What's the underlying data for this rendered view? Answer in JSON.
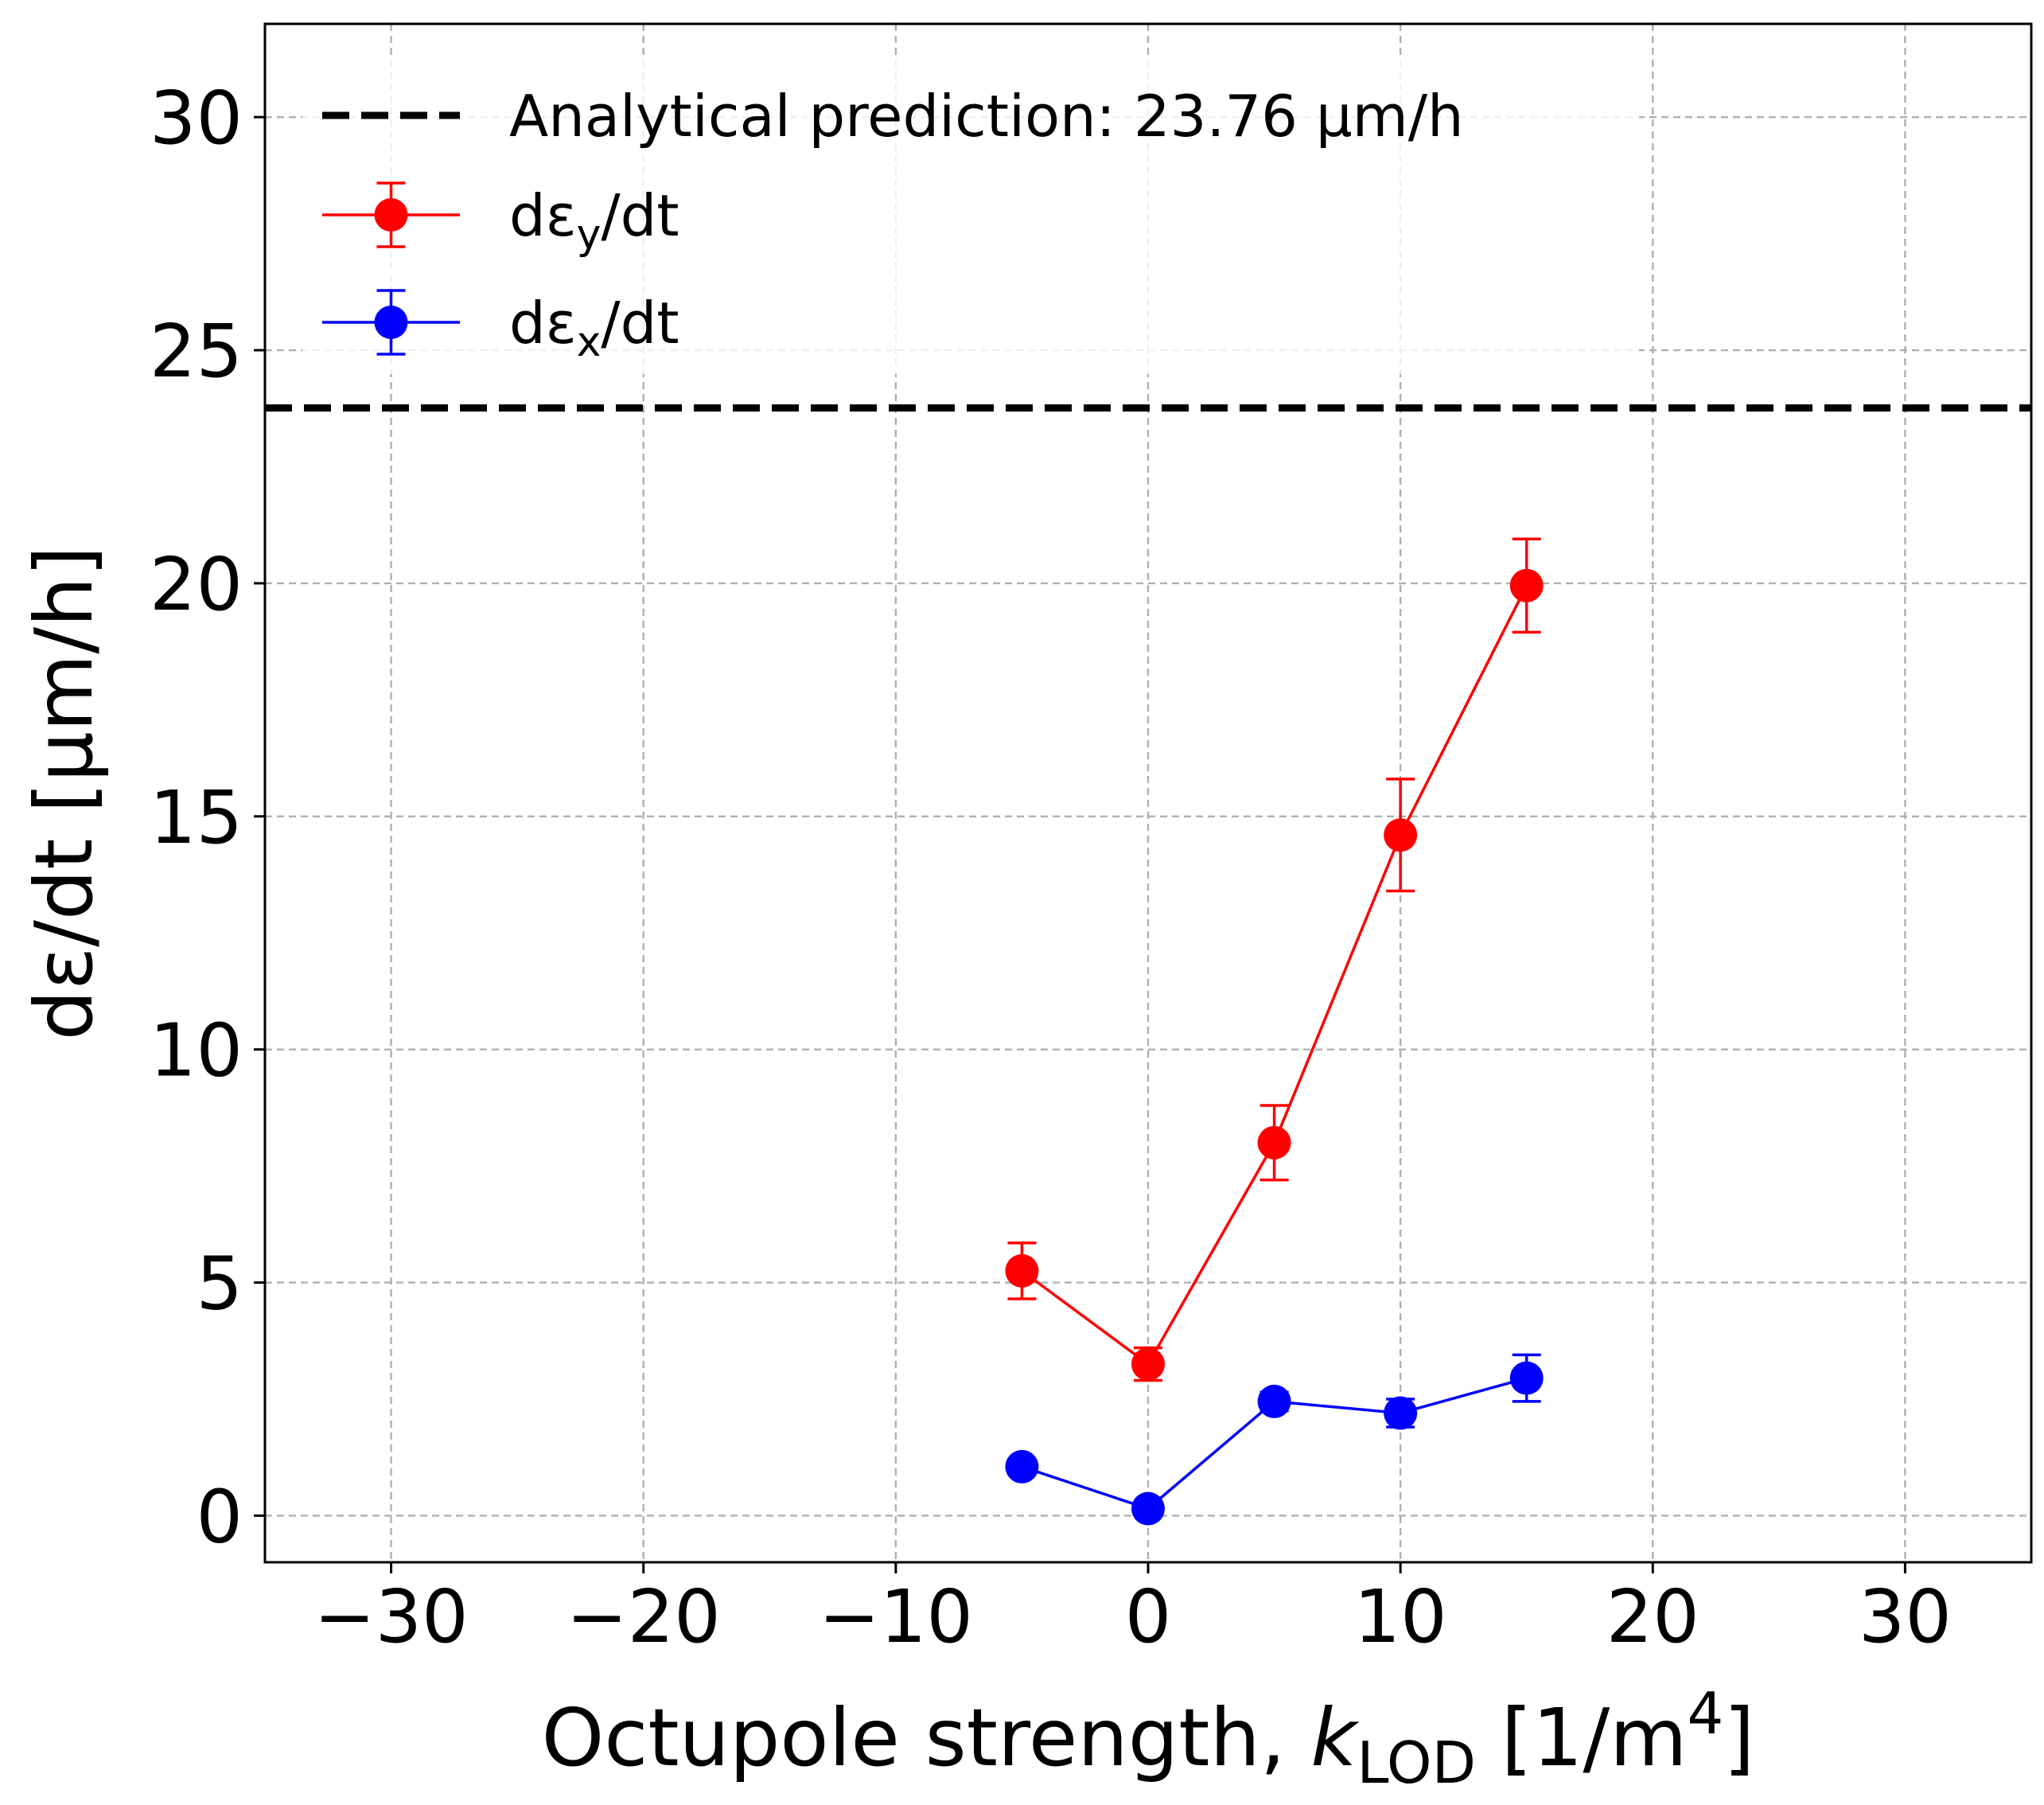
{
  "chart_data": {
    "type": "scatter",
    "xlabel": "Octupole strength, k_LOD [1/m^4]",
    "xlabel_parts": {
      "prefix": "Octupole strength, ",
      "var": "k",
      "sub": "LOD",
      "unit_open": " [1/m",
      "sup": "4",
      "unit_close": "]"
    },
    "ylabel": "dε/dt [μm/h]",
    "xlim": [
      -35,
      35
    ],
    "ylim": [
      -1,
      32
    ],
    "xticks": [
      -30,
      -20,
      -10,
      0,
      10,
      20,
      30
    ],
    "xtick_labels": [
      "−30",
      "−20",
      "−10",
      "0",
      "10",
      "20",
      "30"
    ],
    "yticks": [
      0,
      5,
      10,
      15,
      20,
      25,
      30
    ],
    "ytick_labels": [
      "0",
      "5",
      "10",
      "15",
      "20",
      "25",
      "30"
    ],
    "grid": true,
    "legend_position": "top-left",
    "reference_line": {
      "label": "Analytical prediction: 23.76 μm/h",
      "y": 23.76,
      "color": "#000000",
      "style": "dashed"
    },
    "series": [
      {
        "name": "dε_y/dt",
        "name_parts": {
          "base": "dε",
          "sub": "y",
          "rest": "/dt"
        },
        "color": "#ff0000",
        "x": [
          -5,
          0,
          5,
          10,
          15
        ],
        "y": [
          5.25,
          3.25,
          8.0,
          14.6,
          19.95
        ],
        "yerr": [
          0.6,
          0.35,
          0.8,
          1.2,
          1.0
        ]
      },
      {
        "name": "dε_x/dt",
        "name_parts": {
          "base": "dε",
          "sub": "x",
          "rest": "/dt"
        },
        "color": "#0000ff",
        "x": [
          -5,
          0,
          5,
          10,
          15
        ],
        "y": [
          1.05,
          0.15,
          2.45,
          2.2,
          2.95
        ],
        "yerr": [
          0.15,
          0.12,
          0.2,
          0.3,
          0.5
        ]
      }
    ]
  }
}
